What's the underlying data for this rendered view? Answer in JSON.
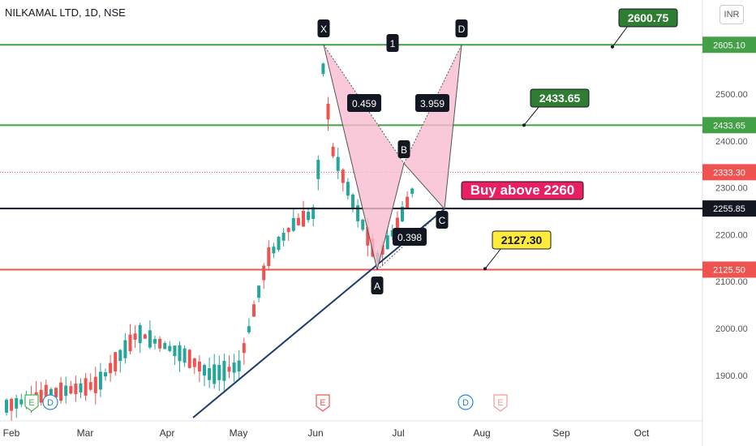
{
  "header": {
    "title": "NILKAMAL LTD, 1D, NSE",
    "currency": "INR"
  },
  "chart_data": {
    "type": "candlestick",
    "x_ticks": [
      "Feb",
      "Mar",
      "Apr",
      "May",
      "Jun",
      "Jul",
      "Aug",
      "Sep",
      "Oct"
    ],
    "y_ticks": [
      "2500.00",
      "2400.00",
      "2300.00",
      "2200.00",
      "2100.00",
      "2000.00",
      "1900.00"
    ],
    "ylim": [
      1800,
      2640
    ],
    "horizontal_levels": [
      {
        "label": "2605.10",
        "value": 2605.1,
        "color": "#43a047"
      },
      {
        "label": "2433.65",
        "value": 2433.65,
        "color": "#43a047"
      },
      {
        "label": "2333.30",
        "value": 2333.3,
        "color": "#ef5350"
      },
      {
        "label": "2255.85",
        "value": 2255.85,
        "color": "#131722"
      },
      {
        "label": "2125.50",
        "value": 2125.5,
        "color": "#ef5350"
      }
    ],
    "callouts": [
      {
        "text": "2600.75",
        "value": 2600.75,
        "color": "#2e7d32"
      },
      {
        "text": "2433.65",
        "value": 2433.65,
        "color": "#2e7d32"
      },
      {
        "text": "2127.30",
        "value": 2127.3,
        "color": "#ffeb3b"
      }
    ],
    "annotation": "Buy above 2260",
    "pattern_points": [
      {
        "label": "X",
        "value": 2605
      },
      {
        "label": "A",
        "value": 2125
      },
      {
        "label": "B",
        "value": 2352
      },
      {
        "label": "C",
        "value": 2255
      },
      {
        "label": "D",
        "value": 2605
      }
    ],
    "ratios": [
      "0.459",
      "3.959",
      "0.398"
    ],
    "leg_label": "1",
    "event_markers": [
      "E",
      "D",
      "E",
      "D",
      "E"
    ],
    "colors": {
      "up": "#26a69a",
      "down": "#ef5350",
      "pattern_fill": "#f8bbd0",
      "trendline": "#1a3b6e"
    }
  }
}
